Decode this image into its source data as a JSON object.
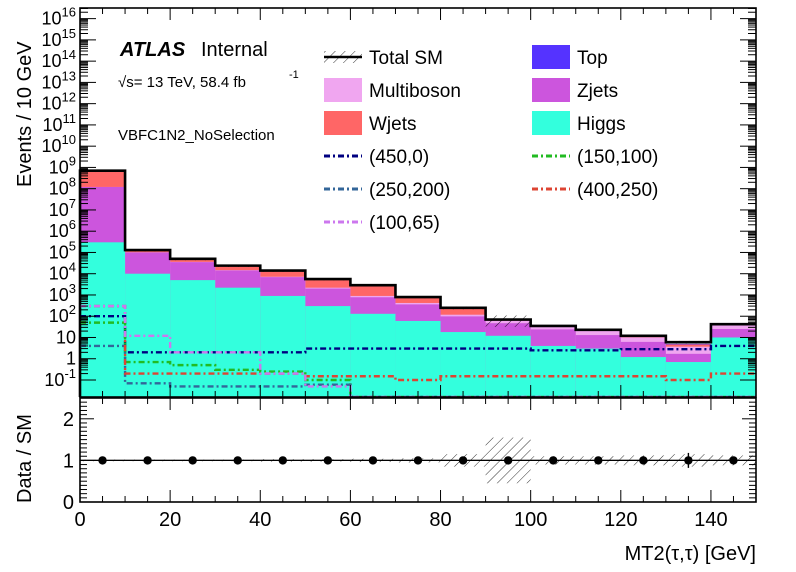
{
  "header": {
    "atlas": "ATLAS",
    "status": "Internal",
    "energy": "√s= 13 TeV, 58.4 fb",
    "lumi_sup": "-1",
    "region": "VBFC1N2_NoSelection"
  },
  "chart_data": [
    {
      "type": "histogram",
      "yscale": "log",
      "ylim": [
        0.01,
        1e+16
      ],
      "xlim": [
        0,
        150
      ],
      "ylabel": "Events / 10 GeV",
      "ytick_labels": [
        "10^{-1}",
        "1",
        "10",
        "10^{2}",
        "10^{3}",
        "10^{4}",
        "10^{5}",
        "10^{6}",
        "10^{7}",
        "10^{8}",
        "10^{9}",
        "10^{10}",
        "10^{11}",
        "10^{12}",
        "10^{13}",
        "10^{14}",
        "10^{15}",
        "10^{16}"
      ],
      "bin_edges": [
        0,
        10,
        20,
        30,
        40,
        50,
        60,
        70,
        80,
        90,
        100,
        110,
        120,
        130,
        140,
        150
      ],
      "stack": [
        {
          "name": "Higgs",
          "color": "#33ffdd",
          "values": [
            300000.0,
            10000.0,
            5000.0,
            2200,
            900,
            300,
            130,
            60,
            18,
            12,
            4,
            3,
            1.2,
            0.7,
            10
          ]
        },
        {
          "name": "Zjets",
          "color": "#cc55dd",
          "values": [
            120000000.0,
            90000.0,
            30000.0,
            12000.0,
            6000,
            1700,
            650,
            300,
            80,
            35,
            20,
            10,
            5,
            1,
            15
          ]
        },
        {
          "name": "Multiboson",
          "color": "#f0a6f0",
          "values": [
            500000.0,
            2000,
            1000,
            500,
            300,
            200,
            120,
            60,
            20,
            15,
            10,
            8,
            4,
            2,
            15
          ]
        },
        {
          "name": "Wjets",
          "color": "#ff6666",
          "values": [
            500000000.0,
            20000.0,
            9000,
            9000,
            7000,
            3500,
            2000,
            400,
            120,
            1,
            1,
            1,
            1,
            1,
            1
          ]
        },
        {
          "name": "Top",
          "color": "#5533ff",
          "values": [
            1000000.0,
            5000,
            2000,
            1000,
            500,
            200,
            100,
            50,
            20,
            5,
            2,
            1,
            0.5,
            0.3,
            0.5
          ]
        }
      ],
      "total_sm": {
        "name": "Total SM",
        "values": [
          700000000.0,
          130000.0,
          50000.0,
          24000.0,
          14000.0,
          5600,
          2900,
          800,
          250,
          70,
          35,
          23,
          12,
          6,
          42
        ],
        "rel_unc": [
          0.02,
          0.02,
          0.02,
          0.02,
          0.03,
          0.03,
          0.04,
          0.05,
          0.15,
          0.55,
          0.1,
          0.1,
          0.12,
          0.15,
          0.12
        ]
      },
      "signals": [
        {
          "name": "(450,0)",
          "color": "#000080",
          "dash": "6 3 2 3",
          "values": [
            100,
            2,
            2,
            2,
            2,
            3,
            3,
            3,
            3,
            3,
            2.5,
            2.5,
            2.8,
            2.8,
            4
          ]
        },
        {
          "name": "(150,100)",
          "color": "#22bb22",
          "dash": "6 3 2 3",
          "values": [
            50,
            0.7,
            0.5,
            0.3,
            0.25,
            0.1,
            0.01,
            0.01,
            0.01,
            0.01,
            0.01,
            0.01,
            0.01,
            0.01,
            0.01
          ]
        },
        {
          "name": "(250,200)",
          "color": "#336699",
          "dash": "6 3 2 3",
          "values": [
            4,
            0.07,
            0.05,
            0.05,
            0.05,
            0.06,
            0.01,
            0.01,
            0.01,
            0.01,
            0.01,
            0.01,
            0.01,
            0.01,
            0.01
          ]
        },
        {
          "name": "(400,250)",
          "color": "#dd4433",
          "dash": "6 3 2 3",
          "values": [
            300,
            0.2,
            0.2,
            0.2,
            0.2,
            0.15,
            0.15,
            0.1,
            0.15,
            0.15,
            0.15,
            0.15,
            0.15,
            0.1,
            0.2
          ]
        },
        {
          "name": "(100,65)",
          "color": "#cc77ee",
          "dash": "6 3 2 3",
          "values": [
            300,
            12,
            2,
            2,
            0.2,
            0.05,
            0.01,
            0.01,
            0.01,
            0.01,
            0.01,
            0.01,
            0.01,
            0.01,
            0.01
          ]
        }
      ],
      "legend": [
        "Total SM",
        "Top",
        "Multiboson",
        "Zjets",
        "Wjets",
        "Higgs",
        "(450,0)",
        "(150,100)",
        "(250,200)",
        "(400,250)",
        "(100,65)"
      ],
      "legend_position": "top-right, two columns"
    },
    {
      "type": "ratio",
      "ylabel": "Data / SM",
      "xlabel": "MT2(τ,τ) [GeV]",
      "ylim": [
        0,
        2.5
      ],
      "yticks": [
        "0",
        "1",
        "2"
      ],
      "xticks": [
        "0",
        "20",
        "40",
        "60",
        "80",
        "100",
        "120",
        "140"
      ],
      "x": [
        5,
        15,
        25,
        35,
        45,
        55,
        65,
        75,
        85,
        95,
        105,
        115,
        125,
        135,
        145
      ],
      "y": [
        1,
        1,
        1,
        1,
        1,
        1,
        1,
        1,
        1,
        1,
        1,
        1,
        1,
        1,
        1
      ],
      "yerr": [
        0,
        0,
        0,
        0,
        0,
        0,
        0,
        0,
        0,
        0,
        0,
        0,
        0.1,
        0.18,
        0.08
      ]
    }
  ]
}
